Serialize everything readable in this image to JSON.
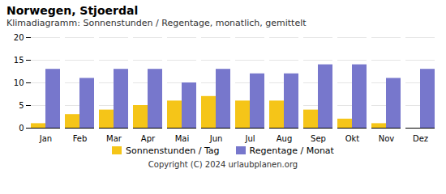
{
  "chart_data": {
    "type": "bar",
    "title": "Norwegen, Stjoerdal",
    "subtitle": "Klimadiagramm: Sonnenstunden / Regentage, monatlich, gemittelt",
    "caption": "Copyright (C) 2024 urlaubplanen.org",
    "categories": [
      "Jan",
      "Feb",
      "Mar",
      "Apr",
      "Mai",
      "Jun",
      "Jul",
      "Aug",
      "Sep",
      "Okt",
      "Nov",
      "Dez"
    ],
    "series": [
      {
        "name": "Sonnenstunden / Tag",
        "color": "#f5c518",
        "values": [
          1,
          3,
          4,
          5,
          6,
          7,
          6,
          6,
          4,
          2,
          1,
          0
        ]
      },
      {
        "name": "Regentage / Monat",
        "color": "#7777cc",
        "values": [
          13,
          11,
          13,
          13,
          10,
          13,
          12,
          12,
          14,
          14,
          11,
          13
        ]
      }
    ],
    "ylim": [
      0,
      20
    ],
    "yticks": [
      0,
      5,
      10,
      15,
      20
    ],
    "grid": true,
    "legend": "bottom"
  }
}
